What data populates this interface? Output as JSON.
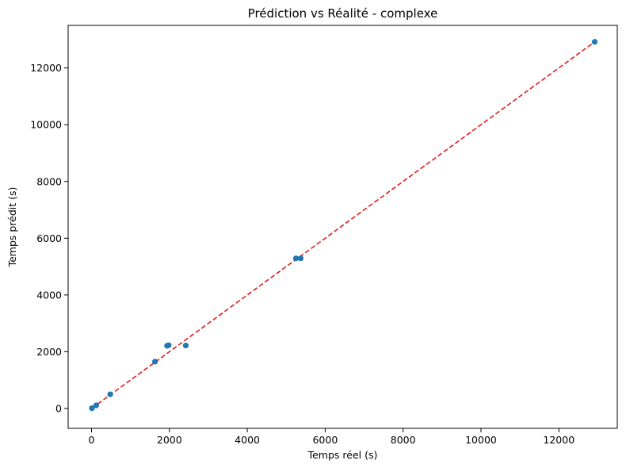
{
  "chart_data": {
    "type": "scatter",
    "title": "Prédiction vs Réalité - complexe",
    "xlabel": "Temps réel (s)",
    "ylabel": "Temps prédit (s)",
    "xlim": [
      -600,
      13500
    ],
    "ylim": [
      -700,
      13500
    ],
    "xticks": [
      0,
      2000,
      4000,
      6000,
      8000,
      10000,
      12000
    ],
    "yticks": [
      0,
      2000,
      4000,
      6000,
      8000,
      10000,
      12000
    ],
    "grid": false,
    "series": [
      {
        "name": "points",
        "color": "#1f77b4",
        "x": [
          10,
          120,
          480,
          1630,
          1940,
          1980,
          2420,
          5250,
          5370,
          12920
        ],
        "y": [
          10,
          110,
          500,
          1650,
          2210,
          2230,
          2220,
          5290,
          5290,
          12920
        ]
      },
      {
        "name": "reference",
        "style": "dashed",
        "color": "#e31a1c",
        "x": [
          10,
          12920
        ],
        "y": [
          10,
          12920
        ]
      }
    ]
  }
}
